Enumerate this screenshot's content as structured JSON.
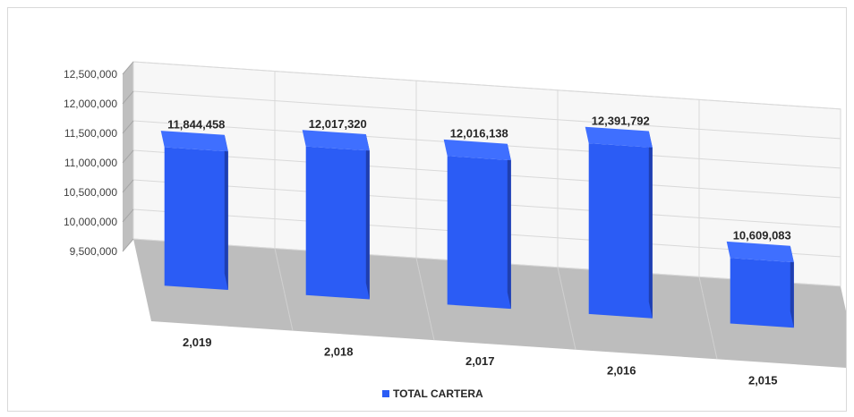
{
  "chart_data": {
    "type": "bar",
    "title": "",
    "xlabel": "",
    "ylabel": "",
    "categories": [
      "2,019",
      "2,018",
      "2,017",
      "2,016",
      "2,015"
    ],
    "series": [
      {
        "name": "TOTAL CARTERA",
        "values": [
          11844458,
          12017320,
          12016138,
          12391792,
          10609083
        ],
        "color": "#2b5cf5"
      }
    ],
    "data_labels": [
      "11,844,458",
      "12,017,320",
      "12,016,138",
      "12,391,792",
      "10,609,083"
    ],
    "ylim": [
      9500000,
      12500000
    ],
    "y_ticks": [
      9500000,
      10000000,
      10500000,
      11000000,
      11500000,
      12000000,
      12500000
    ],
    "y_tick_labels": [
      "9,500,000",
      "10,000,000",
      "10,500,000",
      "11,000,000",
      "11,500,000",
      "12,000,000",
      "12,500,000"
    ],
    "grid": true,
    "legend_position": "bottom",
    "style": "3d-column",
    "colors": {
      "bar_front": "#2b5cf5",
      "bar_side": "#1f3fb0",
      "bar_top": "#3f6fff",
      "wall": "#d4d4d4",
      "floor": "#bdbdbd",
      "gridline": "#d9d9d9"
    }
  }
}
